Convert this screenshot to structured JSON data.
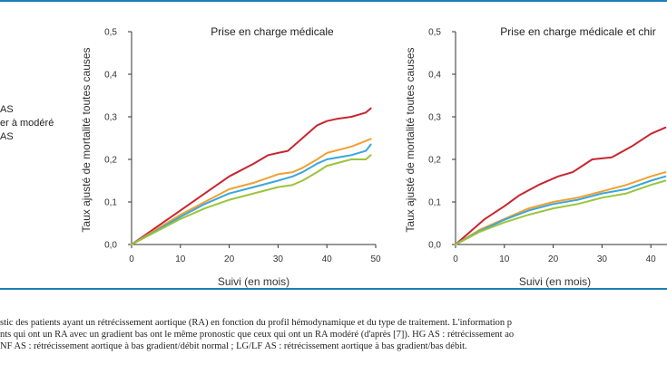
{
  "legend": {
    "items": [
      "AS",
      "er à modéré",
      "AS"
    ]
  },
  "caption": {
    "lines": [
      "stic des patients ayant un rétrécissement aortique (RA) en fonction du profil hémodynamique et du type de traitement. L'information p",
      "nts qui ont un RA avec un gradient bas ont le même pronostic que ceux qui ont un RA modéré (d'après [7]). HG AS : rétrécissement ao",
      "NF AS : rétrécissement aortique à bas gradient/débit normal ; LG/LF AS : rétrécissement aortique à bas gradient/bas débit."
    ]
  },
  "colors": {
    "red": "#c8252f",
    "orange": "#f0a030",
    "blue": "#3aa6dc",
    "green": "#9cc43c"
  },
  "chart_data": [
    {
      "type": "line",
      "title": "Prise en charge médicale",
      "xlabel": "Suivi (en mois)",
      "ylabel": "Taux ajusté de mortalité toutes causes",
      "xlim": [
        0,
        50
      ],
      "ylim": [
        0,
        0.5
      ],
      "xticks": [
        "0",
        "10",
        "20",
        "30",
        "40",
        "50"
      ],
      "yticks": [
        "0,0",
        "0,1",
        "0,2",
        "0,3",
        "0,4",
        "0,5"
      ],
      "series": [
        {
          "color": "#c8252f",
          "x": [
            0,
            5,
            10,
            15,
            20,
            25,
            28,
            30,
            32,
            35,
            38,
            40,
            42,
            45,
            48,
            49
          ],
          "y": [
            0,
            0.04,
            0.08,
            0.12,
            0.16,
            0.19,
            0.21,
            0.215,
            0.22,
            0.25,
            0.28,
            0.29,
            0.295,
            0.3,
            0.31,
            0.32
          ]
        },
        {
          "color": "#f0a030",
          "x": [
            0,
            5,
            10,
            15,
            20,
            25,
            30,
            33,
            35,
            38,
            40,
            45,
            49
          ],
          "y": [
            0,
            0.035,
            0.07,
            0.1,
            0.13,
            0.145,
            0.165,
            0.17,
            0.18,
            0.2,
            0.215,
            0.23,
            0.248
          ]
        },
        {
          "color": "#3aa6dc",
          "x": [
            0,
            5,
            10,
            15,
            20,
            25,
            30,
            33,
            35,
            38,
            40,
            45,
            48,
            49
          ],
          "y": [
            0,
            0.032,
            0.065,
            0.095,
            0.12,
            0.135,
            0.15,
            0.16,
            0.17,
            0.19,
            0.2,
            0.21,
            0.22,
            0.235
          ]
        },
        {
          "color": "#9cc43c",
          "x": [
            0,
            5,
            10,
            15,
            20,
            25,
            30,
            33,
            35,
            38,
            40,
            45,
            48,
            49
          ],
          "y": [
            0,
            0.03,
            0.06,
            0.085,
            0.105,
            0.12,
            0.135,
            0.14,
            0.15,
            0.17,
            0.185,
            0.2,
            0.2,
            0.21
          ]
        }
      ]
    },
    {
      "type": "line",
      "title": "Prise en charge médicale et chir",
      "xlabel": "Suivi (en mois)",
      "ylabel": "Taux ajusté de mortalité toutes causes",
      "xlim": [
        0,
        50
      ],
      "ylim": [
        0,
        0.5
      ],
      "xticks": [
        "0",
        "10",
        "20",
        "30",
        "40"
      ],
      "yticks": [
        "0,0",
        "0,1",
        "0,2",
        "0,3",
        "0,4",
        "0,5"
      ],
      "series": [
        {
          "color": "#c8252f",
          "x": [
            0,
            3,
            6,
            10,
            13,
            17,
            21,
            24,
            28,
            32,
            36,
            40,
            43
          ],
          "y": [
            0,
            0.03,
            0.06,
            0.09,
            0.115,
            0.14,
            0.16,
            0.17,
            0.2,
            0.205,
            0.23,
            0.26,
            0.275
          ]
        },
        {
          "color": "#f0a030",
          "x": [
            0,
            5,
            10,
            15,
            20,
            25,
            30,
            35,
            40,
            43
          ],
          "y": [
            0,
            0.035,
            0.06,
            0.085,
            0.1,
            0.11,
            0.125,
            0.14,
            0.16,
            0.17
          ]
        },
        {
          "color": "#3aa6dc",
          "x": [
            0,
            5,
            10,
            15,
            20,
            25,
            30,
            35,
            40,
            43
          ],
          "y": [
            0,
            0.032,
            0.058,
            0.08,
            0.095,
            0.105,
            0.12,
            0.13,
            0.15,
            0.16
          ]
        },
        {
          "color": "#9cc43c",
          "x": [
            0,
            5,
            10,
            15,
            20,
            25,
            30,
            35,
            40,
            43
          ],
          "y": [
            0,
            0.03,
            0.052,
            0.07,
            0.085,
            0.095,
            0.11,
            0.12,
            0.14,
            0.15
          ]
        }
      ]
    }
  ]
}
